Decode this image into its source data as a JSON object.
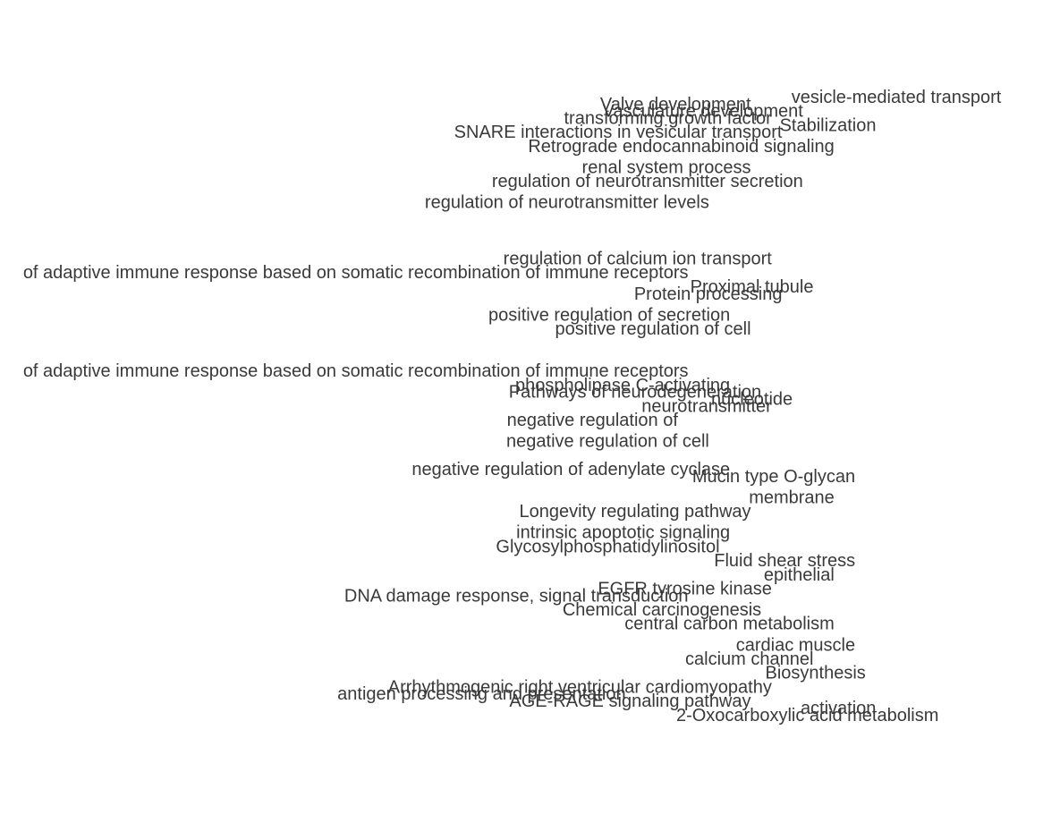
{
  "chart_data": {
    "type": "scatter",
    "title": "",
    "xlabel": "",
    "ylabel": "",
    "grid": false,
    "legend": "none",
    "note": "Term labels anchored at their end point; heavy overlap makes most terms illegible. Visible labels transcribed from top to bottom.",
    "labels": [
      "vesicle-mediated transport",
      "Valve development",
      "Vasculature development",
      "transforming growth factor",
      "SNARE interactions in vesicular transport",
      "Stabilization",
      "Retrograde endocannabinoid signaling",
      "renal system process",
      "regulation of neurotransmitter levels",
      "regulation of neurotransmitter secretion",
      "regulation of calcium ion transport",
      "of adaptive immune response based on somatic recombination of immune receptors",
      "Protein processing",
      "Proximal tubule",
      "positive regulation of secretion",
      "positive regulation of cell",
      "of adaptive immune response based on somatic recombination of immune receptors",
      "phospholipase C-activating",
      "Pathways of neurodegeneration",
      "nucleotide",
      "neurotransmitter",
      "negative regulation of",
      "negative regulation of cell",
      "negative regulation of adenylate cyclase",
      "Mucin type O-glycan",
      "membrane",
      "Longevity regulating pathway",
      "intrinsic apoptotic signaling",
      "Glycosylphosphatidylinositol",
      "Fluid shear stress",
      "epithelial",
      "EGFR tyrosine kinase",
      "DNA damage response, signal transduction",
      "Chemical carcinogenesis",
      "central carbon metabolism",
      "cardiac muscle",
      "calcium channel",
      "Biosynthesis",
      "antigen processing and presentation",
      "Arrhythmogenic right ventricular cardiomyopathy",
      "AGE-RAGE signaling pathway",
      "activation",
      "2-Oxocarboxylic acid metabolism"
    ],
    "x": [
      0.96,
      0.72,
      0.77,
      0.74,
      0.75,
      0.84,
      0.8,
      0.72,
      0.68,
      0.77,
      0.74,
      0.66,
      0.75,
      0.78,
      0.7,
      0.72,
      0.66,
      0.7,
      0.73,
      0.76,
      0.74,
      0.65,
      0.68,
      0.7,
      0.82,
      0.8,
      0.72,
      0.7,
      0.69,
      0.82,
      0.8,
      0.74,
      0.66,
      0.73,
      0.8,
      0.82,
      0.78,
      0.83,
      0.6,
      0.74,
      0.72,
      0.84,
      0.9
    ],
    "y": [
      0.93,
      0.92,
      0.91,
      0.9,
      0.88,
      0.89,
      0.86,
      0.83,
      0.78,
      0.81,
      0.7,
      0.68,
      0.65,
      0.66,
      0.62,
      0.6,
      0.54,
      0.52,
      0.51,
      0.5,
      0.49,
      0.47,
      0.44,
      0.4,
      0.39,
      0.36,
      0.34,
      0.31,
      0.29,
      0.27,
      0.25,
      0.23,
      0.22,
      0.2,
      0.18,
      0.15,
      0.13,
      0.11,
      0.08,
      0.09,
      0.07,
      0.06,
      0.05
    ]
  }
}
